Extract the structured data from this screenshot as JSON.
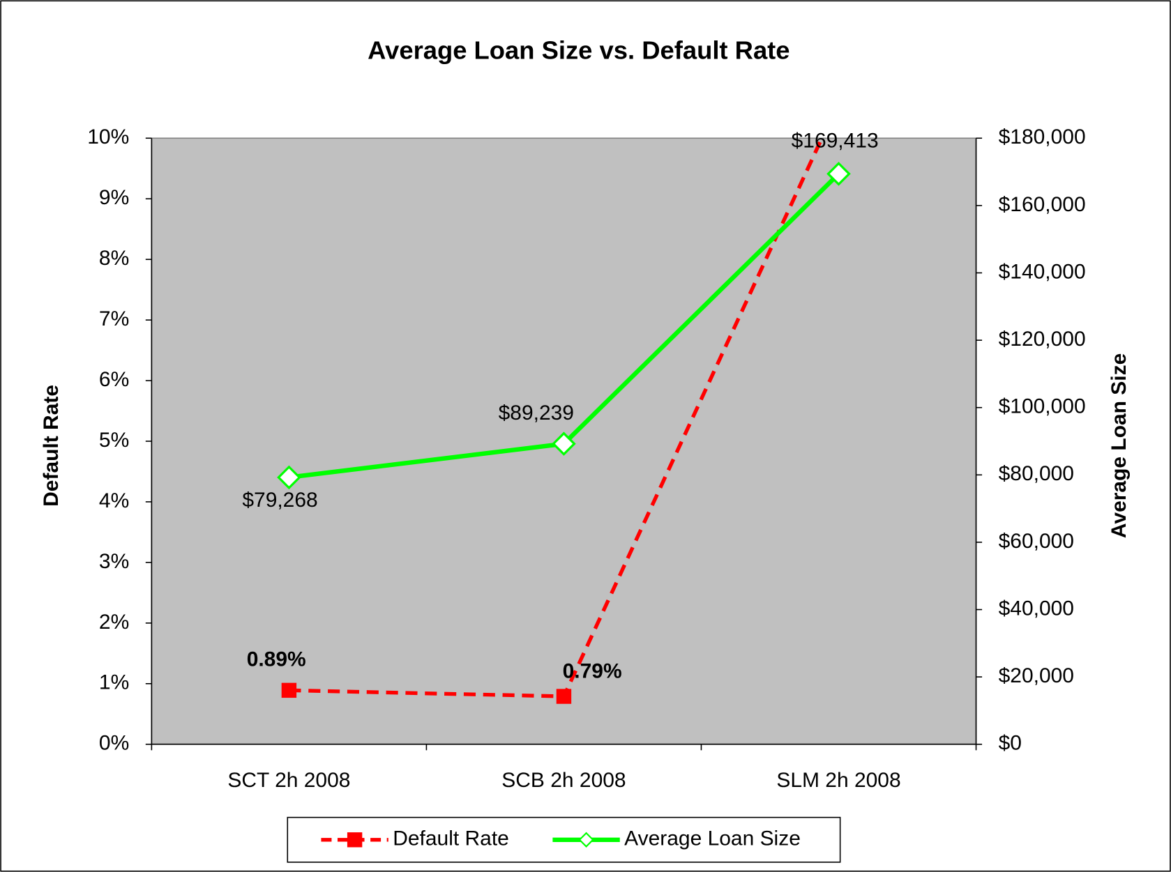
{
  "chart_data": {
    "type": "line",
    "title": "Average Loan Size vs. Default Rate",
    "categories": [
      "SCT 2h 2008",
      "SCB 2h 2008",
      "SLM 2h 2008"
    ],
    "series": [
      {
        "name": "Default Rate",
        "color": "#ff0000",
        "values": [
          0.89,
          0.79,
          10.6
        ],
        "value_labels": [
          "0.89%",
          "0.79%",
          null
        ]
      },
      {
        "name": "Average Loan Size",
        "color": "#00ff00",
        "axis": "y2",
        "values": [
          79268,
          89239,
          169413
        ],
        "value_labels": [
          "$79,268",
          "$89,239",
          "$169,413"
        ]
      }
    ],
    "ylabel": "Default Rate",
    "y2label": "Average Loan Size",
    "ylim": [
      0,
      10
    ],
    "yticks": [
      {
        "value": 0,
        "label": "0%"
      },
      {
        "value": 1,
        "label": "1%"
      },
      {
        "value": 2,
        "label": "2%"
      },
      {
        "value": 3,
        "label": "3%"
      },
      {
        "value": 4,
        "label": "4%"
      },
      {
        "value": 5,
        "label": "5%"
      },
      {
        "value": 6,
        "label": "6%"
      },
      {
        "value": 7,
        "label": "7%"
      },
      {
        "value": 8,
        "label": "8%"
      },
      {
        "value": 9,
        "label": "9%"
      },
      {
        "value": 10,
        "label": "10%"
      }
    ],
    "y2lim": [
      0,
      180000
    ],
    "y2ticks": [
      {
        "value": 0,
        "label": "$0"
      },
      {
        "value": 20000,
        "label": "$20,000"
      },
      {
        "value": 40000,
        "label": "$40,000"
      },
      {
        "value": 60000,
        "label": "$60,000"
      },
      {
        "value": 80000,
        "label": "$80,000"
      },
      {
        "value": 100000,
        "label": "$100,000"
      },
      {
        "value": 120000,
        "label": "$120,000"
      },
      {
        "value": 140000,
        "label": "$140,000"
      },
      {
        "value": 160000,
        "label": "$160,000"
      },
      {
        "value": 180000,
        "label": "$180,000"
      }
    ],
    "plot_background": "#c0c0c0",
    "legend": "bottom"
  }
}
